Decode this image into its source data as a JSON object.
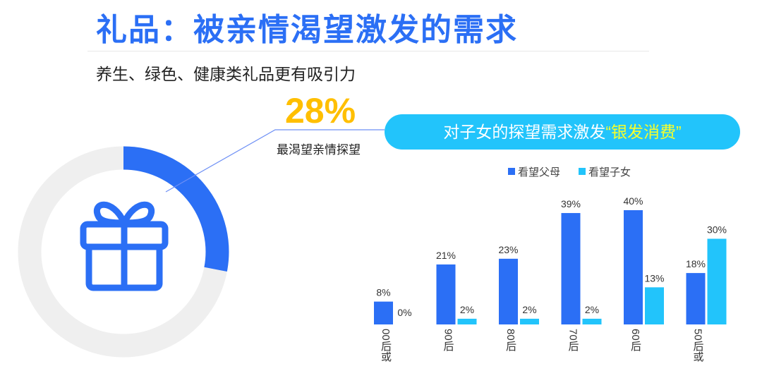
{
  "title": "礼品：被亲情渴望激发的需求",
  "subtitle": "养生、绿色、健康类礼品更有吸引力",
  "highlight": {
    "value": "28%",
    "label": "最渴望亲情探望",
    "fraction": 0.28,
    "color": "#2b6ff5",
    "track_color": "#efefef",
    "value_color": "#ffbf00"
  },
  "banner": {
    "text": "对子女的探望需求激发",
    "quote": "“银发消费”"
  },
  "icon": "gift-icon",
  "chart_data": {
    "type": "bar",
    "categories": [
      "00后或",
      "90后",
      "80后",
      "70后",
      "60后",
      "50后或"
    ],
    "series": [
      {
        "name": "看望父母",
        "values": [
          8,
          21,
          23,
          39,
          40,
          18
        ],
        "labels": [
          "8%",
          "21%",
          "23%",
          "39%",
          "40%",
          "18%"
        ],
        "color": "#2b6ff5"
      },
      {
        "name": "看望子女",
        "values": [
          0,
          2,
          2,
          2,
          13,
          30
        ],
        "labels": [
          "0%",
          "2%",
          "2%",
          "2%",
          "13%",
          "30%"
        ],
        "color": "#22c4fb"
      }
    ],
    "legend": "top",
    "grid": false,
    "ylim": [
      0,
      40
    ]
  }
}
